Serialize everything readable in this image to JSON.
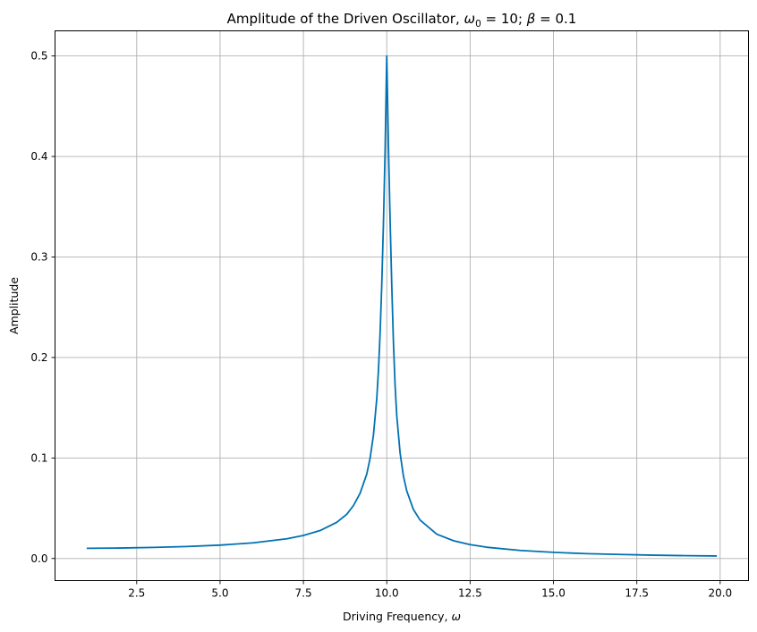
{
  "chart_data": {
    "type": "line",
    "title": {
      "prefix": "Amplitude of the Driven Oscillator, ",
      "omega": "ω",
      "omega_sub": "0",
      "omega_value": " = 10; ",
      "beta": "β",
      "beta_value": " = 0.1"
    },
    "xlabel": {
      "text": "Driving Frequency, ",
      "symbol": "ω"
    },
    "ylabel": "Amplitude",
    "xlim": [
      0.05,
      20.85
    ],
    "ylim": [
      -0.022,
      0.525
    ],
    "xticks": [
      2.5,
      5.0,
      7.5,
      10.0,
      12.5,
      15.0,
      17.5,
      20.0
    ],
    "xtick_labels": [
      "2.5",
      "5.0",
      "7.5",
      "10.0",
      "12.5",
      "15.0",
      "17.5",
      "20.0"
    ],
    "yticks": [
      0.0,
      0.1,
      0.2,
      0.3,
      0.4,
      0.5
    ],
    "ytick_labels": [
      "0.0",
      "0.1",
      "0.2",
      "0.3",
      "0.4",
      "0.5"
    ],
    "grid": true,
    "series": [
      {
        "color": "#0072b2",
        "x": [
          1.0,
          2.0,
          3.0,
          4.0,
          5.0,
          6.0,
          7.0,
          7.5,
          8.0,
          8.5,
          8.8,
          9.0,
          9.2,
          9.4,
          9.5,
          9.6,
          9.7,
          9.75,
          9.8,
          9.85,
          9.9,
          9.95,
          10.0,
          10.05,
          10.1,
          10.15,
          10.2,
          10.25,
          10.3,
          10.4,
          10.5,
          10.6,
          10.8,
          11.0,
          11.5,
          12.0,
          12.5,
          13.0,
          14.0,
          15.0,
          16.0,
          17.0,
          18.0,
          19.0,
          19.9
        ],
        "y": [
          0.0101,
          0.0104,
          0.011,
          0.0119,
          0.0133,
          0.0156,
          0.0196,
          0.0229,
          0.0278,
          0.036,
          0.044,
          0.0526,
          0.0649,
          0.084,
          0.0997,
          0.1226,
          0.1589,
          0.1867,
          0.2238,
          0.2721,
          0.333,
          0.4048,
          0.5,
          0.41,
          0.337,
          0.272,
          0.215,
          0.172,
          0.142,
          0.105,
          0.082,
          0.0672,
          0.0487,
          0.0382,
          0.0242,
          0.0177,
          0.0138,
          0.0112,
          0.008,
          0.0061,
          0.0048,
          0.004,
          0.0033,
          0.0028,
          0.0025
        ]
      }
    ]
  }
}
